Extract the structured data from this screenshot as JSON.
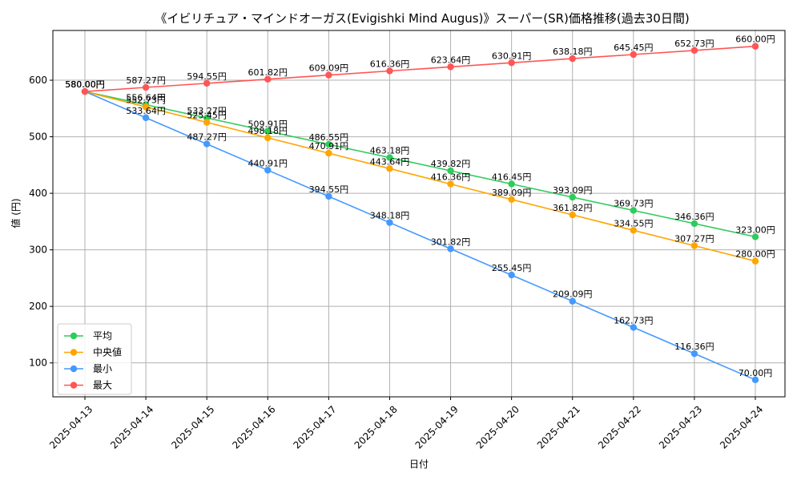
{
  "chart_data": {
    "type": "line",
    "title": "《イビリチュア・マインドオーガス(Evigishki Mind Augus)》スーパー(SR)価格推移(過去30日間)",
    "xlabel": "日付",
    "ylabel": "値 (円)",
    "ylim": [
      40,
      688
    ],
    "yticks": [
      100,
      200,
      300,
      400,
      500,
      600
    ],
    "grid": true,
    "legend_position": "lower-left",
    "value_suffix": "円",
    "categories": [
      "2025-04-13",
      "2025-04-14",
      "2025-04-15",
      "2025-04-16",
      "2025-04-17",
      "2025-04-18",
      "2025-04-19",
      "2025-04-20",
      "2025-04-21",
      "2025-04-22",
      "2025-04-23",
      "2025-04-24"
    ],
    "series": [
      {
        "name": "平均",
        "color": "#2ecc5a",
        "values": [
          580.0,
          556.64,
          533.27,
          509.91,
          486.55,
          463.18,
          439.82,
          416.45,
          393.09,
          369.73,
          346.36,
          323.0
        ]
      },
      {
        "name": "中央値",
        "color": "#ffa500",
        "values": [
          580.0,
          552.73,
          525.45,
          498.18,
          470.91,
          443.64,
          416.36,
          389.09,
          361.82,
          334.55,
          307.27,
          280.0
        ]
      },
      {
        "name": "最小",
        "color": "#4499ff",
        "values": [
          580.0,
          533.64,
          487.27,
          440.91,
          394.55,
          348.18,
          301.82,
          255.45,
          209.09,
          162.73,
          116.36,
          70.0
        ]
      },
      {
        "name": "最大",
        "color": "#ff5555",
        "values": [
          580.0,
          587.27,
          594.55,
          601.82,
          609.09,
          616.36,
          623.64,
          630.91,
          638.18,
          645.45,
          652.73,
          660.0
        ]
      }
    ]
  }
}
